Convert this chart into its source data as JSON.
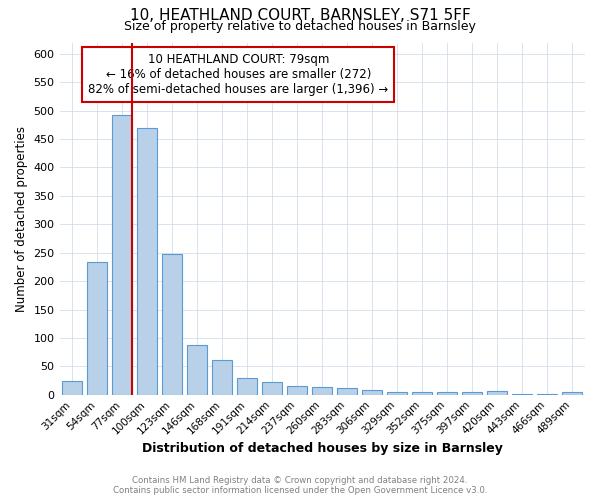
{
  "title": "10, HEATHLAND COURT, BARNSLEY, S71 5FF",
  "subtitle": "Size of property relative to detached houses in Barnsley",
  "xlabel": "Distribution of detached houses by size in Barnsley",
  "ylabel": "Number of detached properties",
  "categories": [
    "31sqm",
    "54sqm",
    "77sqm",
    "100sqm",
    "123sqm",
    "146sqm",
    "168sqm",
    "191sqm",
    "214sqm",
    "237sqm",
    "260sqm",
    "283sqm",
    "306sqm",
    "329sqm",
    "352sqm",
    "375sqm",
    "397sqm",
    "420sqm",
    "443sqm",
    "466sqm",
    "489sqm"
  ],
  "values": [
    25,
    233,
    493,
    470,
    248,
    87,
    62,
    30,
    23,
    15,
    13,
    12,
    8,
    5,
    4,
    4,
    5,
    7,
    1,
    1,
    4
  ],
  "bar_color": "#b8d0e8",
  "bar_edge_color": "#5b9bd5",
  "property_label": "10 HEATHLAND COURT: 79sqm",
  "annotation_line1": "← 16% of detached houses are smaller (272)",
  "annotation_line2": "82% of semi-detached houses are larger (1,396) →",
  "red_line_color": "#cc0000",
  "annotation_box_edge": "#cc0000",
  "red_line_index": 2,
  "ylim": [
    0,
    620
  ],
  "yticks": [
    0,
    50,
    100,
    150,
    200,
    250,
    300,
    350,
    400,
    450,
    500,
    550,
    600
  ],
  "footer_line1": "Contains HM Land Registry data © Crown copyright and database right 2024.",
  "footer_line2": "Contains public sector information licensed under the Open Government Licence v3.0.",
  "background_color": "#ffffff",
  "grid_color": "#c8d8e8"
}
